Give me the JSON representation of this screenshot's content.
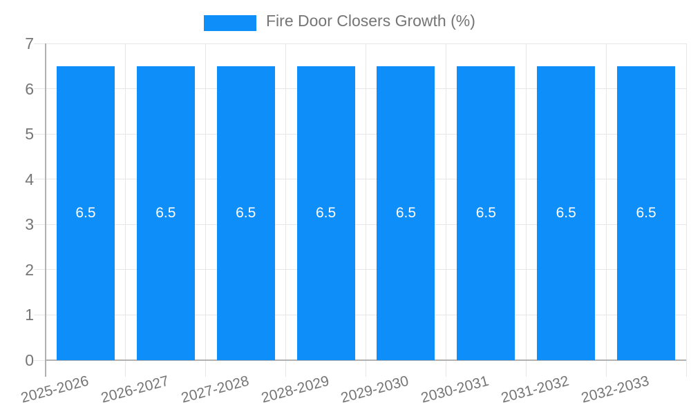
{
  "chart_data": {
    "type": "bar",
    "title": "Fire Door Closers Growth (%)",
    "categories": [
      "2025-2026",
      "2026-2027",
      "2027-2028",
      "2028-2029",
      "2029-2030",
      "2030-2031",
      "2031-2032",
      "2032-2033"
    ],
    "series": [
      {
        "name": "Fire Door Closers Growth (%)",
        "values": [
          6.5,
          6.5,
          6.5,
          6.5,
          6.5,
          6.5,
          6.5,
          6.5
        ]
      }
    ],
    "bar_value_labels": [
      "6.5",
      "6.5",
      "6.5",
      "6.5",
      "6.5",
      "6.5",
      "6.5",
      "6.5"
    ],
    "xlabel": "",
    "ylabel": "",
    "ylim": [
      0,
      7
    ],
    "yticks": [
      0,
      1,
      2,
      3,
      4,
      5,
      6,
      7
    ],
    "grid": true,
    "legend_position": "top"
  },
  "colors": {
    "bar": "#0d8ef8",
    "grid": "#e6e6e6",
    "axis": "#b0b0b0",
    "text": "#757575",
    "bar_label": "#ffffff",
    "background": "#ffffff"
  }
}
